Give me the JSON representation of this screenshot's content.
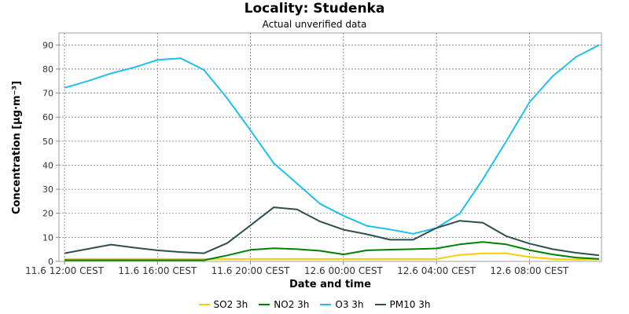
{
  "chart_data": {
    "type": "line",
    "title": "Locality: Studenka",
    "subtitle": "Actual unverified data",
    "xlabel": "Date and time",
    "ylabel": "Concentration [µg·m⁻³]",
    "ylim": [
      0,
      95
    ],
    "yticks": [
      0,
      10,
      20,
      30,
      40,
      50,
      60,
      70,
      80,
      90
    ],
    "xlim": [
      "2023-06-11 12:00",
      "2023-06-12 11:00"
    ],
    "xticks": [
      {
        "x": "2023-06-11 12:00",
        "label": "11.6 12:00 CEST"
      },
      {
        "x": "2023-06-11 16:00",
        "label": "11.6 16:00 CEST"
      },
      {
        "x": "2023-06-11 20:00",
        "label": "11.6 20:00 CEST"
      },
      {
        "x": "2023-06-12 00:00",
        "label": "12.6 00:00 CEST"
      },
      {
        "x": "2023-06-12 04:00",
        "label": "12.6 04:00 CEST"
      },
      {
        "x": "2023-06-12 08:00",
        "label": "12.6 08:00 CEST"
      }
    ],
    "grid": true,
    "legend_position": "bottom",
    "x": [
      "2023-06-11 12:00",
      "2023-06-11 13:00",
      "2023-06-11 14:00",
      "2023-06-11 15:00",
      "2023-06-11 16:00",
      "2023-06-11 17:00",
      "2023-06-11 18:00",
      "2023-06-11 19:00",
      "2023-06-11 20:00",
      "2023-06-11 21:00",
      "2023-06-11 22:00",
      "2023-06-11 23:00",
      "2023-06-12 00:00",
      "2023-06-12 01:00",
      "2023-06-12 02:00",
      "2023-06-12 03:00",
      "2023-06-12 04:00",
      "2023-06-12 05:00",
      "2023-06-12 06:00",
      "2023-06-12 07:00",
      "2023-06-12 08:00",
      "2023-06-12 09:00",
      "2023-06-12 10:00",
      "2023-06-12 11:00"
    ],
    "series": [
      {
        "name": "SO2 3h",
        "color": "#FFCC00",
        "values": [
          1.0,
          1.0,
          1.0,
          1.0,
          1.0,
          1.0,
          1.0,
          1.0,
          1.0,
          1.0,
          1.0,
          1.0,
          1.0,
          1.0,
          1.0,
          1.0,
          1.0,
          2.7,
          3.3,
          3.4,
          1.8,
          1.0,
          0.8,
          0.8
        ]
      },
      {
        "name": "NO2 3h",
        "color": "#008000",
        "values": [
          0.5,
          0.5,
          0.5,
          0.5,
          0.5,
          0.5,
          0.5,
          2.5,
          4.8,
          5.5,
          5.1,
          4.4,
          2.9,
          4.6,
          4.9,
          5.1,
          5.4,
          7.1,
          8.1,
          7.1,
          4.7,
          2.9,
          1.6,
          1.0
        ]
      },
      {
        "name": "O3 3h",
        "color": "#1EC0F0",
        "values": [
          72.2,
          75.0,
          78.2,
          80.7,
          83.8,
          84.5,
          79.6,
          67.8,
          54.5,
          40.8,
          32.4,
          23.9,
          19.0,
          14.8,
          13.3,
          11.5,
          13.9,
          19.9,
          34.2,
          49.9,
          66.2,
          77.0,
          85.0,
          90.0
        ]
      },
      {
        "name": "PM10 3h",
        "color": "#2F4F4F",
        "values": [
          3.4,
          5.2,
          7.0,
          5.7,
          4.6,
          3.9,
          3.4,
          7.6,
          15.0,
          22.5,
          21.6,
          16.6,
          13.2,
          11.3,
          9.0,
          9.0,
          13.9,
          16.9,
          16.1,
          10.5,
          7.4,
          5.1,
          3.6,
          2.5
        ]
      }
    ]
  }
}
